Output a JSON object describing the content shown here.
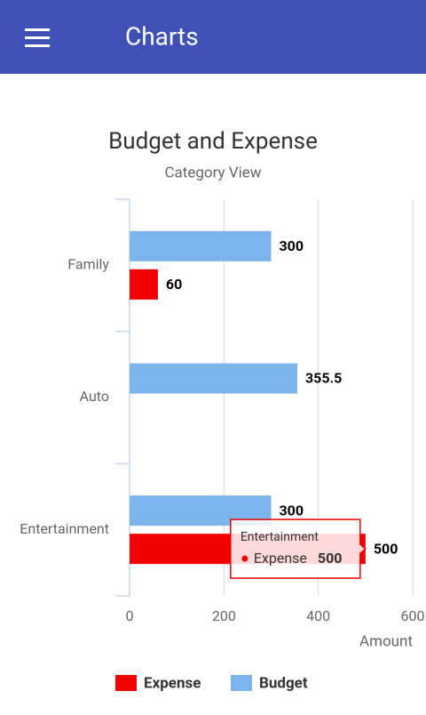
{
  "header": {
    "title": "Charts"
  },
  "chart_data": {
    "type": "bar",
    "orientation": "horizontal",
    "title": "Budget and Expense",
    "subtitle": "Category View",
    "categories": [
      "Family",
      "Auto",
      "Entertainment"
    ],
    "series": [
      {
        "name": "Expense",
        "color": "#f00000",
        "values": [
          60,
          null,
          500
        ]
      },
      {
        "name": "Budget",
        "color": "#7cb5ec",
        "values": [
          300,
          355.5,
          300
        ]
      }
    ],
    "xlabel": "Amount",
    "xlim": [
      0,
      600
    ],
    "xticks": [
      0,
      200,
      400,
      600
    ],
    "grid": true,
    "legend": "bottom",
    "tooltip": {
      "category": 2,
      "series": 0
    }
  }
}
